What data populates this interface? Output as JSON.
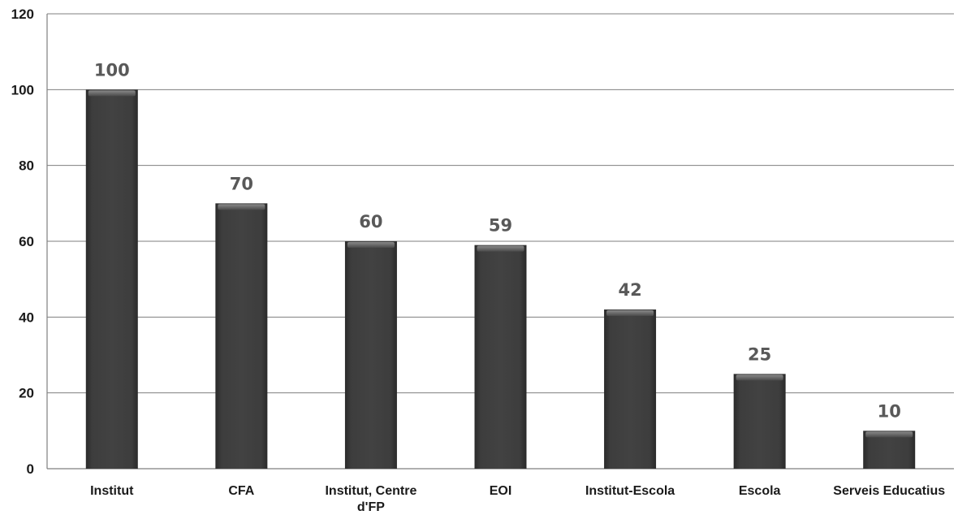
{
  "chart_data": {
    "type": "bar",
    "categories": [
      "Institut",
      "CFA",
      "Institut, Centre d'FP",
      "EOI",
      "Institut-Escola",
      "Escola",
      "Serveis Educatius"
    ],
    "category_lines": [
      [
        "Institut"
      ],
      [
        "CFA"
      ],
      [
        "Institut, Centre",
        "d'FP"
      ],
      [
        "EOI"
      ],
      [
        "Institut-Escola"
      ],
      [
        "Escola"
      ],
      [
        "Serveis Educatius"
      ]
    ],
    "values": [
      100,
      70,
      60,
      59,
      42,
      25,
      10
    ],
    "data_labels": [
      "100",
      "70",
      "60",
      "59",
      "42",
      "25",
      "10"
    ],
    "yticks": [
      "0",
      "20",
      "40",
      "60",
      "80",
      "100",
      "120"
    ],
    "title": "",
    "xlabel": "",
    "ylabel": "",
    "ylim": [
      0,
      120
    ],
    "grid": true,
    "legend": "none",
    "colors": {
      "bar": "#3a3a3a",
      "bar_highlight": "#6e6e6e",
      "grid": "#7f7f7f",
      "data_label": "#595959"
    }
  }
}
